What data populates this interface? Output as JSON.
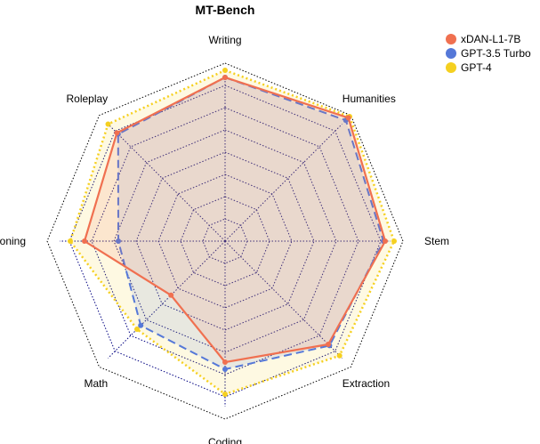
{
  "chart_data": {
    "type": "radar",
    "title": "MT-Bench",
    "categories": [
      "Writing",
      "Humanities",
      "Stem",
      "Extraction",
      "Coding",
      "Math",
      "Reasoning",
      "Roleplay"
    ],
    "rlim": [
      0,
      10
    ],
    "grid_levels": 8,
    "grid": true,
    "legend_position": "top-right",
    "series": [
      {
        "name": "xDAN-L1-7B",
        "color": "#f07050",
        "line_style": "solid",
        "values": [
          9.2,
          9.8,
          9.0,
          8.2,
          6.8,
          4.3,
          7.9,
          8.6
        ]
      },
      {
        "name": "GPT-3.5 Turbo",
        "color": "#5578d8",
        "line_style": "dashed",
        "values": [
          9.2,
          9.6,
          8.9,
          8.3,
          7.2,
          6.7,
          6.0,
          8.5
        ]
      },
      {
        "name": "GPT-4",
        "color": "#f5d020",
        "line_style": "dotted",
        "values": [
          9.6,
          9.9,
          9.5,
          9.1,
          8.6,
          7.0,
          8.7,
          9.3
        ]
      }
    ]
  }
}
